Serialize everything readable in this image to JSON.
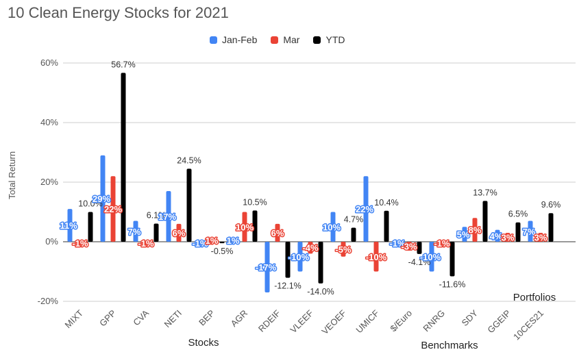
{
  "chart_data": {
    "type": "bar",
    "title": "10 Clean Energy Stocks for 2021",
    "xlabel": "",
    "ylabel": "Total Return",
    "ylim": [
      -20,
      60
    ],
    "yticks": [
      "60%",
      "40%",
      "20%",
      "0%",
      "-20%"
    ],
    "categories": [
      "MIXT",
      "GPP",
      "CVA",
      "NETI",
      "BEP",
      "AGR",
      "RDEIF",
      "VLEEF",
      "VEOEF",
      "UMICF",
      "$/Euro",
      "RNRG",
      "SDY",
      "GGEIP",
      "10CES21"
    ],
    "series": [
      {
        "name": "Jan-Feb",
        "color": "#4285f4",
        "values": [
          11,
          29,
          7,
          17,
          -1,
          1,
          -17,
          -10,
          10,
          22,
          -1,
          -10,
          5,
          4,
          7
        ],
        "labels": [
          "11%",
          "29%",
          "7%",
          "17%",
          "-1%",
          "1%",
          "-17%",
          "-10%",
          "10%",
          "22%",
          "-1%",
          "-10%",
          "5%",
          "4%",
          "7%"
        ]
      },
      {
        "name": "Mar",
        "color": "#ea4335",
        "values": [
          -1,
          22,
          -1,
          6,
          1,
          10,
          6,
          -4,
          -5,
          -10,
          -3,
          -1,
          8,
          3,
          3
        ],
        "labels": [
          "-1%",
          "22%",
          "-1%",
          "6%",
          "1%",
          "10%",
          "6%",
          "-4%",
          "-5%",
          "-10%",
          "-3%",
          "-1%",
          "8%",
          "3%",
          "3%"
        ]
      },
      {
        "name": "YTD",
        "color": "#000000",
        "values": [
          10.0,
          56.7,
          6.1,
          24.5,
          -0.5,
          10.5,
          -12.1,
          -14.0,
          4.7,
          10.4,
          -4.1,
          -11.6,
          13.7,
          6.5,
          9.6
        ],
        "labels": [
          "10.0%",
          "56.7%",
          "6.1%",
          "24.5%",
          "-0.5%",
          "10.5%",
          "-12.1%",
          "-14.0%",
          "4.7%",
          "10.4%",
          "-4.1%",
          "-11.6%",
          "13.7%",
          "6.5%",
          "9.6%"
        ]
      }
    ],
    "groups": [
      "Stocks",
      "Benchmarks",
      "Portfolios"
    ]
  }
}
